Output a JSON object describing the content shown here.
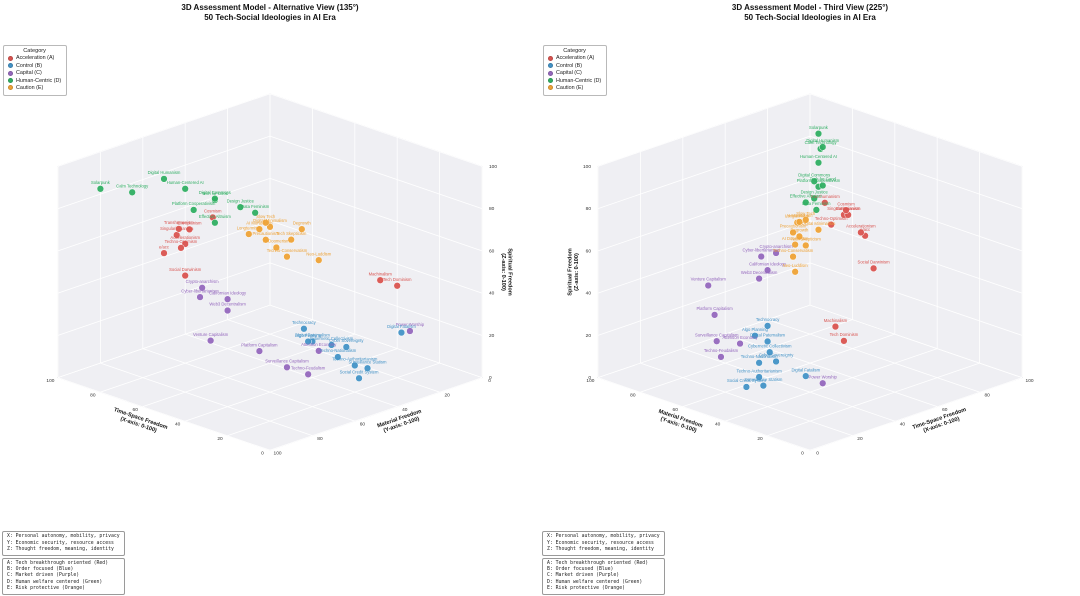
{
  "panels": [
    {
      "title": "3D Assessment Model - Alternative View (135°)",
      "subtitle": "50 Tech-Social Ideologies in AI Era",
      "azim": 135,
      "elev": 20
    },
    {
      "title": "3D Assessment Model - Third View (225°)",
      "subtitle": "50 Tech-Social Ideologies in AI Era",
      "azim": 225,
      "elev": 20
    }
  ],
  "legend": {
    "title": "Category",
    "items": [
      {
        "label": "Acceleration (A)",
        "cat": "A"
      },
      {
        "label": "Control (B)",
        "cat": "B"
      },
      {
        "label": "Capital (C)",
        "cat": "C"
      },
      {
        "label": "Human-Centric (D)",
        "cat": "D"
      },
      {
        "label": "Caution (E)",
        "cat": "E"
      }
    ]
  },
  "notes": {
    "axes": [
      "X: Personal autonomy, mobility, privacy",
      "Y: Economic security, resource access",
      "Z: Thought freedom, meaning, identity"
    ],
    "categories": [
      "A: Tech breakthrough oriented (Red)",
      "B: Order focused (Blue)",
      "C: Market driven (Purple)",
      "D: Human welfare centered (Green)",
      "E: Risk protective (Orange)"
    ]
  },
  "chart_data": {
    "type": "scatter",
    "projection": "3d",
    "axes": {
      "x": {
        "label": "Time-Space Freedom",
        "sublabel": "(X-axis: 0-100)",
        "range": [
          0,
          100
        ],
        "ticks": [
          0,
          20,
          40,
          60,
          80,
          100
        ]
      },
      "y": {
        "label": "Material Freedom",
        "sublabel": "(Y-axis: 0-100)",
        "range": [
          0,
          100
        ],
        "ticks": [
          0,
          20,
          40,
          60,
          80,
          100
        ]
      },
      "z": {
        "label": "Spiritual Freedom",
        "sublabel": "(Z-axis: 0-100)",
        "range": [
          0,
          100
        ],
        "ticks": [
          0,
          20,
          40,
          60,
          80,
          100
        ]
      }
    },
    "categories": {
      "A": {
        "name": "Acceleration",
        "color": "#d9534f"
      },
      "B": {
        "name": "Control",
        "color": "#4292c6"
      },
      "C": {
        "name": "Capital",
        "color": "#9467bd"
      },
      "D": {
        "name": "Human-Centric",
        "color": "#2fae62"
      },
      "E": {
        "name": "Caution",
        "color": "#eea236"
      }
    },
    "points": [
      {
        "name": "Accelerationism",
        "cat": "A",
        "x": 82,
        "y": 58,
        "z": 55
      },
      {
        "name": "e/acc",
        "cat": "A",
        "x": 88,
        "y": 62,
        "z": 50
      },
      {
        "name": "Transhumanism",
        "cat": "A",
        "x": 75,
        "y": 68,
        "z": 68
      },
      {
        "name": "Singularitarianism",
        "cat": "A",
        "x": 80,
        "y": 64,
        "z": 62
      },
      {
        "name": "Cosmism",
        "cat": "A",
        "x": 72,
        "y": 55,
        "z": 70
      },
      {
        "name": "Extropianism",
        "cat": "A",
        "x": 78,
        "y": 60,
        "z": 64
      },
      {
        "name": "Techno-Optimism",
        "cat": "A",
        "x": 76,
        "y": 66,
        "z": 58
      },
      {
        "name": "Social Darwinism",
        "cat": "A",
        "x": 85,
        "y": 55,
        "z": 38
      },
      {
        "name": "Machinalism",
        "cat": "A",
        "x": 30,
        "y": 18,
        "z": 42
      },
      {
        "name": "Tech Dominism",
        "cat": "A",
        "x": 28,
        "y": 12,
        "z": 38
      },
      {
        "name": "Techno-Authoritarianism",
        "cat": "B",
        "x": 18,
        "y": 42,
        "z": 14
      },
      {
        "name": "Digital Paternalism",
        "cat": "B",
        "x": 30,
        "y": 50,
        "z": 24
      },
      {
        "name": "Cyber Sovereignty",
        "cat": "B",
        "x": 24,
        "y": 40,
        "z": 20
      },
      {
        "name": "Social Credit System",
        "cat": "B",
        "x": 14,
        "y": 44,
        "z": 10
      },
      {
        "name": "Algo Planning",
        "cat": "B",
        "x": 28,
        "y": 54,
        "z": 26
      },
      {
        "name": "Techno-Nationalism",
        "cat": "B",
        "x": 22,
        "y": 46,
        "z": 18
      },
      {
        "name": "Surveillance Statism",
        "cat": "B",
        "x": 16,
        "y": 38,
        "z": 12
      },
      {
        "name": "Digital Fatalism",
        "cat": "B",
        "x": 18,
        "y": 20,
        "z": 22
      },
      {
        "name": "Technocracy",
        "cat": "B",
        "x": 32,
        "y": 52,
        "z": 30
      },
      {
        "name": "Cybernetic Collectivism",
        "cat": "B",
        "x": 26,
        "y": 45,
        "z": 22
      },
      {
        "name": "Cyber-libertarianism",
        "cat": "C",
        "x": 55,
        "y": 78,
        "z": 46
      },
      {
        "name": "Crypto-anarchism",
        "cat": "C",
        "x": 58,
        "y": 74,
        "z": 48
      },
      {
        "name": "Platform Capitalism",
        "cat": "C",
        "x": 30,
        "y": 75,
        "z": 28
      },
      {
        "name": "Venture Capitalism",
        "cat": "C",
        "x": 40,
        "y": 88,
        "z": 34
      },
      {
        "name": "Surveillance Capitalism",
        "cat": "C",
        "x": 24,
        "y": 68,
        "z": 20
      },
      {
        "name": "Techno-Feudalism",
        "cat": "C",
        "x": 20,
        "y": 62,
        "z": 16
      },
      {
        "name": "Californian Ideology",
        "cat": "C",
        "x": 50,
        "y": 70,
        "z": 44
      },
      {
        "name": "Web3 Decentralism",
        "cat": "C",
        "x": 48,
        "y": 72,
        "z": 40
      },
      {
        "name": "Attention Economy",
        "cat": "C",
        "x": 22,
        "y": 55,
        "z": 24
      },
      {
        "name": "Power Worship",
        "cat": "C",
        "x": 20,
        "y": 14,
        "z": 20
      },
      {
        "name": "Digital Humanism",
        "cat": "D",
        "x": 78,
        "y": 72,
        "z": 92
      },
      {
        "name": "Calm Technology",
        "cat": "D",
        "x": 85,
        "y": 80,
        "z": 86
      },
      {
        "name": "Solarpunk",
        "cat": "D",
        "x": 92,
        "y": 88,
        "z": 88
      },
      {
        "name": "Platform Cooperativism",
        "cat": "D",
        "x": 70,
        "y": 66,
        "z": 78
      },
      {
        "name": "Effective Altruism",
        "cat": "D",
        "x": 62,
        "y": 64,
        "z": 74
      },
      {
        "name": "Tech for Good",
        "cat": "D",
        "x": 66,
        "y": 60,
        "z": 82
      },
      {
        "name": "Design Justice",
        "cat": "D",
        "x": 58,
        "y": 56,
        "z": 80
      },
      {
        "name": "Data Feminism",
        "cat": "D",
        "x": 55,
        "y": 52,
        "z": 77
      },
      {
        "name": "Digital Commons",
        "cat": "D",
        "x": 64,
        "y": 62,
        "z": 84
      },
      {
        "name": "Human-Centered AI",
        "cat": "D",
        "x": 72,
        "y": 68,
        "z": 88
      },
      {
        "name": "AI Doomerism",
        "cat": "E",
        "x": 45,
        "y": 52,
        "z": 64
      },
      {
        "name": "Longtermism",
        "cat": "E",
        "x": 52,
        "y": 58,
        "z": 70
      },
      {
        "name": "Precautionism",
        "cat": "E",
        "x": 47,
        "y": 55,
        "z": 68
      },
      {
        "name": "Neo-Luddism",
        "cat": "E",
        "x": 35,
        "y": 42,
        "z": 58
      },
      {
        "name": "Degrowth",
        "cat": "E",
        "x": 40,
        "y": 45,
        "z": 72
      },
      {
        "name": "Slow Tech",
        "cat": "E",
        "x": 50,
        "y": 52,
        "z": 74
      },
      {
        "name": "Digital Minimalism",
        "cat": "E",
        "x": 52,
        "y": 48,
        "z": 70
      },
      {
        "name": "Tech Skepticism",
        "cat": "E",
        "x": 44,
        "y": 46,
        "z": 66
      },
      {
        "name": "AI Moratorium",
        "cat": "E",
        "x": 50,
        "y": 55,
        "z": 72
      },
      {
        "name": "Techno-Conservatism",
        "cat": "E",
        "x": 42,
        "y": 50,
        "z": 60
      }
    ]
  }
}
